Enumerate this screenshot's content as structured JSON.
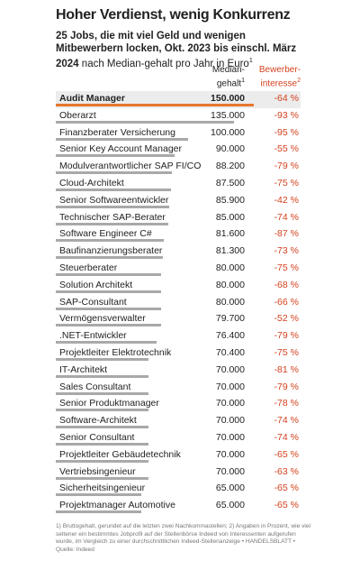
{
  "chart_data": {
    "type": "bar",
    "title": "Hoher Verdienst, wenig Konkurrenz",
    "subtitle_bold": "25 Jobs, die mit viel Geld und wenigen Mitbewerbern locken, Okt. 2023 bis einschl. März 2024",
    "subtitle_rest": "nach Median-gehalt pro Jahr in Euro",
    "subtitle_note": "1",
    "categories": [
      "Audit Manager",
      "Oberarzt",
      "Finanzberater Versicherung",
      "Senior Key Account Manager",
      "Modulverantwortlicher SAP FI/CO",
      "Cloud-Architekt",
      "Senior Softwareentwickler",
      "Technischer SAP-Berater",
      "Software Engineer C#",
      "Baufinanzierungsberater",
      "Steuerberater",
      "Solution Architekt",
      "SAP-Consultant",
      "Vermögensverwalter",
      ".NET-Entwickler",
      "Projektleiter Elektrotechnik",
      "IT-Architekt",
      "Sales Consultant",
      "Senior Produktmanager",
      "Software-Architekt",
      "Senior Consultant",
      "Projektleiter Gebäudetechnik",
      "Vertriebsingenieur",
      "Sicherheitsingenieur",
      "Projektmanager Automotive"
    ],
    "series": [
      {
        "name": [
          "Median-",
          "gehalt"
        ],
        "note": "1",
        "color": "#a9a9a9",
        "values": [
          150000,
          135000,
          100000,
          90000,
          88200,
          87500,
          85900,
          85000,
          81600,
          81300,
          80000,
          80000,
          80000,
          79700,
          76400,
          70400,
          70000,
          70000,
          70000,
          70000,
          70000,
          70000,
          70000,
          65000,
          65000
        ],
        "value_labels": [
          "150.000",
          "135.000",
          "100.000",
          "90.000",
          "88.200",
          "87.500",
          "85.900",
          "85.000",
          "81.600",
          "81.300",
          "80.000",
          "80.000",
          "80.000",
          "79.700",
          "76.400",
          "70.400",
          "70.000",
          "70.000",
          "70.000",
          "70.000",
          "70.000",
          "70.000",
          "70.000",
          "65.000",
          "65.000"
        ]
      },
      {
        "name": [
          "Bewerber-",
          "interesse"
        ],
        "note": "2",
        "color": "#d4421f",
        "values": [
          -64,
          -93,
          -95,
          -55,
          -79,
          -75,
          -42,
          -74,
          -87,
          -73,
          -75,
          -68,
          -66,
          -52,
          -79,
          -75,
          -81,
          -79,
          -78,
          -74,
          -74,
          -65,
          -63,
          -65,
          -65
        ],
        "value_labels": [
          "-64 %",
          "-93 %",
          "-95 %",
          "-55 %",
          "-79 %",
          "-75 %",
          "-42 %",
          "-74 %",
          "-87 %",
          "-73 %",
          "-75 %",
          "-68 %",
          "-66 %",
          "-52 %",
          "-79 %",
          "-75 %",
          "-81 %",
          "-79 %",
          "-78 %",
          "-74 %",
          "-74 %",
          "-65 %",
          "-63 %",
          "-65 %",
          "-65 %"
        ]
      }
    ],
    "xlim": [
      0,
      150000
    ],
    "highlight_index": 0,
    "highlight_color": "#e8772e",
    "footnote": "1) Bruttogehalt, gerundet auf die letzten zwei Nachkommastellen; 2) Angaben in Prozent, wie viel seltener ein bestimmtes Jobprofil auf der Stellenbörse Indeed von Interessenten aufgerufen wurde, im Vergleich zu einer durchschnittlichen Indeed-Stellenanzeige • HANDELSBLATT • Quelle: Indeed"
  }
}
